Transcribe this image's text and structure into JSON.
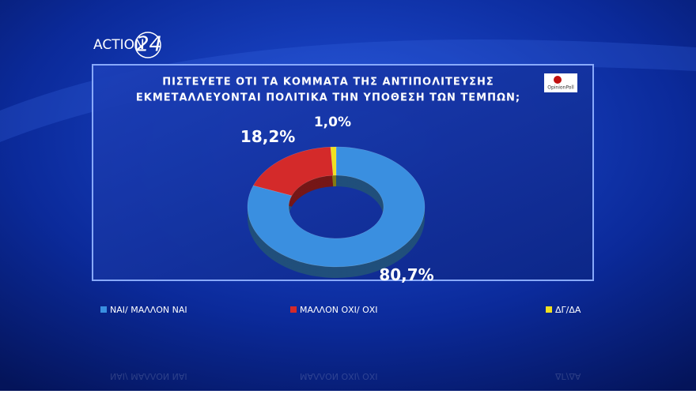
{
  "header": {
    "channel": "ACTION",
    "channel_number": "24",
    "source_logo": "OpinionPoll"
  },
  "chart_data": {
    "type": "donut",
    "title": [
      "ΠΙΣΤΕΥΕΤΕ ΟΤΙ ΤΑ ΚΟΜΜΑΤΑ ΤΗΣ ΑΝΤΙΠΟΛΙΤΕΥΣΗΣ",
      "ΕΚΜΕΤΑΛΛΕΥΟΝΤΑΙ ΠΟΛΙΤΙΚΑ ΤΗΝ ΥΠΟΘΕΣΗ ΤΩΝ ΤΕΜΠΩΝ;"
    ],
    "categories": [
      "ΝΑΙ/ ΜΑΛΛΟΝ ΝΑΙ",
      "ΜΑΛΛΟΝ ΟΧΙ/ ΟΧΙ",
      "ΔΓ/ΔΑ"
    ],
    "values": [
      80.7,
      18.2,
      1.0
    ],
    "value_labels": [
      "80,7%",
      "18,2%",
      "1,0%"
    ],
    "colors": [
      "#3a8fe0",
      "#d42a2a",
      "#f0e020"
    ]
  }
}
